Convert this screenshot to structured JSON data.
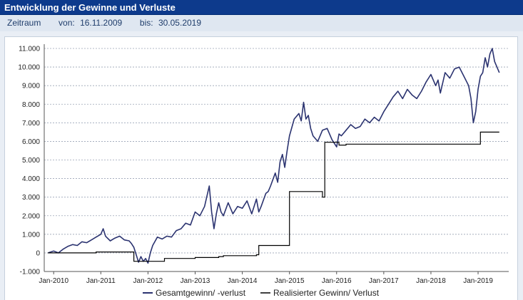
{
  "header": {
    "title": "Entwicklung der Gewinne und Verluste"
  },
  "period": {
    "label": "Zeitraum",
    "from_label": "von:",
    "from": "16.11.2009",
    "to_label": "bis:",
    "to": "30.05.2019"
  },
  "colors": {
    "title_bg": "#0d3a8c",
    "series1": "#2b3370",
    "series2": "#000000",
    "grid": "#9aa3b5"
  },
  "chart_data": {
    "type": "line",
    "ylim": [
      -1000,
      11000
    ],
    "yticks": [
      -1000,
      0,
      1000,
      2000,
      3000,
      4000,
      5000,
      6000,
      7000,
      8000,
      9000,
      10000,
      11000
    ],
    "ytick_labels": [
      "-1.000",
      "0",
      "1.000",
      "2.000",
      "3.000",
      "4.000",
      "5.000",
      "6.000",
      "7.000",
      "8.000",
      "9.000",
      "10.000",
      "11.000"
    ],
    "xlim": [
      2009.8,
      2019.65
    ],
    "xticks": [
      2010,
      2011,
      2012,
      2013,
      2014,
      2015,
      2016,
      2017,
      2018,
      2019
    ],
    "xtick_labels": [
      "Jan-2010",
      "Jan-2011",
      "Jan-2012",
      "Jan-2013",
      "Jan-2014",
      "Jan-2015",
      "Jan-2016",
      "Jan-2017",
      "Jan-2018",
      "Jan-2019"
    ],
    "grid": true,
    "legend_position": "bottom",
    "series": [
      {
        "name": "Gesamtgewinn/ -verlust",
        "x": [
          2009.88,
          2010.0,
          2010.1,
          2010.2,
          2010.3,
          2010.4,
          2010.5,
          2010.6,
          2010.7,
          2010.8,
          2010.9,
          2011.0,
          2011.05,
          2011.1,
          2011.2,
          2011.3,
          2011.4,
          2011.5,
          2011.6,
          2011.65,
          2011.7,
          2011.75,
          2011.8,
          2011.85,
          2011.9,
          2011.95,
          2012.0,
          2012.05,
          2012.1,
          2012.2,
          2012.3,
          2012.4,
          2012.5,
          2012.6,
          2012.7,
          2012.8,
          2012.9,
          2013.0,
          2013.1,
          2013.2,
          2013.3,
          2013.35,
          2013.4,
          2013.45,
          2013.5,
          2013.55,
          2013.6,
          2013.7,
          2013.8,
          2013.9,
          2014.0,
          2014.1,
          2014.2,
          2014.3,
          2014.35,
          2014.4,
          2014.5,
          2014.55,
          2014.6,
          2014.7,
          2014.75,
          2014.8,
          2014.85,
          2014.9,
          2014.95,
          2015.0,
          2015.1,
          2015.2,
          2015.25,
          2015.3,
          2015.35,
          2015.4,
          2015.45,
          2015.5,
          2015.6,
          2015.7,
          2015.8,
          2015.9,
          2016.0,
          2016.05,
          2016.1,
          2016.2,
          2016.3,
          2016.4,
          2016.5,
          2016.6,
          2016.7,
          2016.8,
          2016.9,
          2017.0,
          2017.1,
          2017.2,
          2017.3,
          2017.4,
          2017.5,
          2017.6,
          2017.7,
          2017.8,
          2017.9,
          2018.0,
          2018.1,
          2018.15,
          2018.2,
          2018.3,
          2018.4,
          2018.5,
          2018.6,
          2018.7,
          2018.8,
          2018.85,
          2018.9,
          2018.95,
          2019.0,
          2019.05,
          2019.1,
          2019.15,
          2019.2,
          2019.25,
          2019.3,
          2019.35,
          2019.4,
          2019.45
        ],
        "y": [
          0,
          100,
          0,
          200,
          350,
          450,
          400,
          600,
          550,
          700,
          850,
          1000,
          1300,
          900,
          650,
          800,
          900,
          700,
          650,
          500,
          300,
          -100,
          -500,
          -200,
          -450,
          -300,
          -550,
          0,
          400,
          850,
          750,
          900,
          850,
          1200,
          1300,
          1600,
          1500,
          2200,
          2000,
          2500,
          3600,
          2200,
          1300,
          2100,
          2700,
          2200,
          2000,
          2700,
          2100,
          2500,
          2400,
          2800,
          2100,
          2900,
          2200,
          2500,
          3200,
          3300,
          3600,
          4300,
          3800,
          4900,
          5300,
          4600,
          5500,
          6300,
          7200,
          7500,
          7100,
          8100,
          7200,
          7400,
          6700,
          6300,
          6000,
          6600,
          6700,
          6100,
          5700,
          6400,
          6300,
          6600,
          6900,
          6700,
          6800,
          7200,
          7000,
          7300,
          7100,
          7600,
          8000,
          8400,
          8700,
          8300,
          8800,
          8500,
          8300,
          8700,
          9200,
          9600,
          9000,
          9300,
          8600,
          9700,
          9400,
          9900,
          10000,
          9500,
          9000,
          8300,
          7000,
          7600,
          8800,
          9500,
          9700,
          10500,
          10000,
          10700,
          11000,
          10300,
          10000,
          9700
        ]
      },
      {
        "name": "Realisierter Gewinn/ Verlust",
        "x": [
          2009.88,
          2010.9,
          2011.65,
          2011.7,
          2011.9,
          2012.3,
          2012.35,
          2013.0,
          2013.5,
          2013.6,
          2014.0,
          2014.3,
          2014.35,
          2014.95,
          2015.0,
          2015.7,
          2015.75,
          2016.0,
          2016.05,
          2016.2,
          2019.0,
          2019.05,
          2019.45
        ],
        "y": [
          0,
          50,
          50,
          -450,
          -450,
          -450,
          -300,
          -250,
          -200,
          -150,
          -150,
          -100,
          400,
          400,
          3300,
          3000,
          5950,
          5950,
          5800,
          5850,
          5850,
          6500,
          6500
        ]
      }
    ]
  }
}
